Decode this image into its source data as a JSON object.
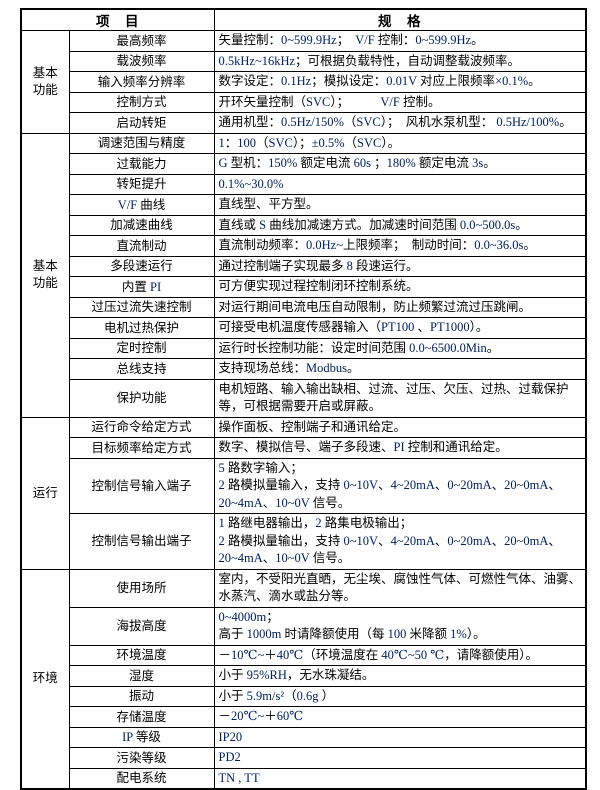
{
  "colors": {
    "latin_text": "#002060",
    "chinese_text": "#000000",
    "border": "#000000",
    "background": "#ffffff"
  },
  "header": {
    "item_col": "项　目",
    "spec_col": "规　格"
  },
  "sections": [
    {
      "category": "基本功能",
      "rows": [
        {
          "item": "最高频率",
          "spec": "矢量控制：0~599.9Hz；  V/F 控制：0~599.9Hz。"
        },
        {
          "item": "载波频率",
          "spec": "0.5kHz~16kHz；可根据负载特性，自动调整载波频率。"
        },
        {
          "item": "输入频率分辨率",
          "spec": "数字设定：0.1Hz；模拟设定：0.01V 对应上限频率×0.1%。"
        },
        {
          "item": "控制方式",
          "spec": "开环矢量控制（SVC）；          V/F 控制。"
        },
        {
          "item": "启动转矩",
          "spec": "通用机型：0.5Hz/150%（SVC）；  风机水泵机型： 0.5Hz/100%。"
        }
      ]
    },
    {
      "category": "基本功能",
      "rows": [
        {
          "item": "调速范围与精度",
          "spec": "1：100（SVC）；±0.5%（SVC）。"
        },
        {
          "item": "过载能力",
          "spec": "G 型机：150% 额定电流 60s ；180% 额定电流 3s。"
        },
        {
          "item": "转矩提升",
          "spec": "0.1%~30.0%"
        },
        {
          "item": "V/F 曲线",
          "spec": "直线型、平方型。"
        },
        {
          "item": "加减速曲线",
          "spec": "直线或 S 曲线加减速方式。加减速时间范围 0.0~500.0s。"
        },
        {
          "item": "直流制动",
          "spec": "直流制动频率：0.0Hz~上限频率；  制动时间：0.0~36.0s。"
        },
        {
          "item": "多段速运行",
          "spec": "通过控制端子实现最多 8 段速运行。"
        },
        {
          "item": "内置 PI",
          "spec": "可方便实现过程控制闭环控制系统。"
        },
        {
          "item": "过压过流失速控制",
          "spec": "对运行期间电流电压自动限制，防止频繁过流过压跳闸。"
        },
        {
          "item": "电机过热保护",
          "spec": "可接受电机温度传感器输入（PT100 、PT1000）。"
        },
        {
          "item": "定时控制",
          "spec": "运行时长控制功能：设定时间范围 0.0~6500.0Min。"
        },
        {
          "item": "总线支持",
          "spec": "支持现场总线：Modbus。"
        },
        {
          "item": "保护功能",
          "spec": "电机短路、输入输出缺相、过流、过压、欠压、过热、过载保护等，可根据需要开启或屏蔽。"
        }
      ]
    },
    {
      "category": "运行",
      "rows": [
        {
          "item": "运行命令给定方式",
          "spec": "操作面板、控制端子和通讯给定。"
        },
        {
          "item": "目标频率给定方式",
          "spec": "数字、模拟信号、端子多段速、PI 控制和通讯给定。"
        },
        {
          "item": "控制信号输入端子",
          "spec": "5 路数字输入；\n2 路模拟量输入，支持 0~10V、4~20mA、0~20mA、20~0mA、20~4mA、10~0V 信号。"
        },
        {
          "item": "控制信号输出端子",
          "spec": "1 路继电器输出，2 路集电极输出；\n2 路模拟量输出，支持 0~10V、4~20mA、0~20mA、20~0mA、20~4mA、10~0V 信号。"
        }
      ]
    },
    {
      "category": "环境",
      "rows": [
        {
          "item": "使用场所",
          "spec": "室内，不受阳光直晒，无尘埃、腐蚀性气体、可燃性气体、油雾、水蒸汽、滴水或盐分等。"
        },
        {
          "item": "海拔高度",
          "spec": "0~4000m；\n高于 1000m 时请降额使用（每 100 米降额 1%）。"
        },
        {
          "item": "环境温度",
          "spec": "－10℃~＋40℃（环境温度在 40℃~50 ℃，请降额使用）。"
        },
        {
          "item": "湿度",
          "spec": "小于 95%RH，无水珠凝结。"
        },
        {
          "item": "振动",
          "spec": "小于 5.9m/s²（0.6g ）"
        },
        {
          "item": "存储温度",
          "spec": "－20℃~＋60℃"
        },
        {
          "item": "IP 等级",
          "spec": "IP20"
        },
        {
          "item": "污染等级",
          "spec": "PD2"
        },
        {
          "item": "配电系统",
          "spec": "TN , TT"
        }
      ]
    }
  ]
}
